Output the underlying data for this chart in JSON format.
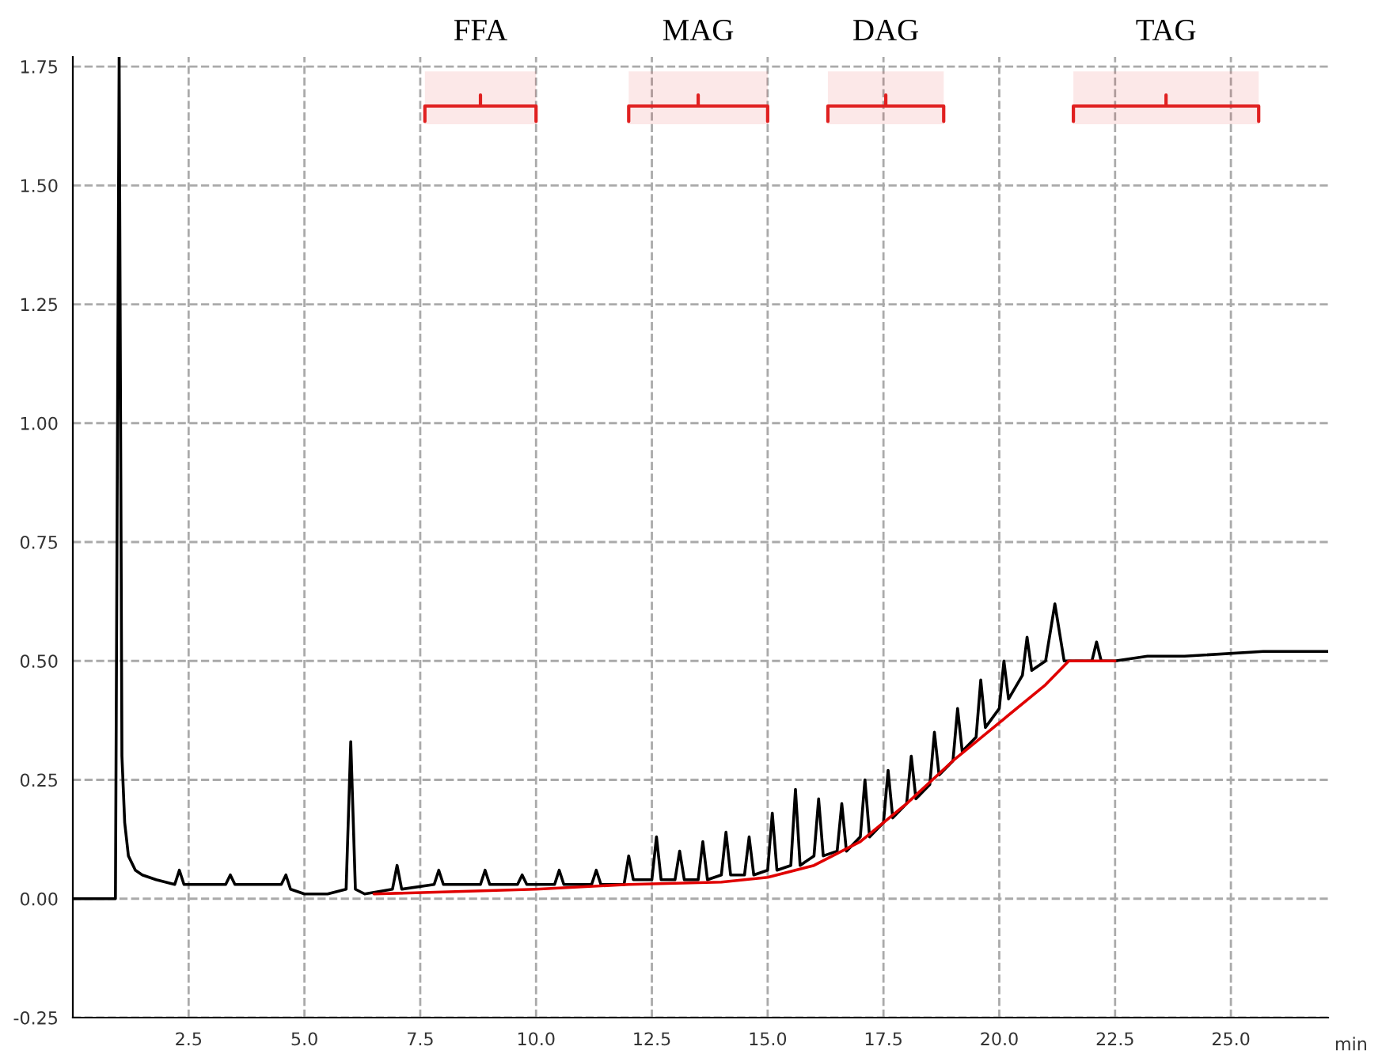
{
  "chart_data": {
    "type": "line",
    "xlabel": "min",
    "xlim": [
      0,
      27.1
    ],
    "ylim": [
      -0.25,
      1.77
    ],
    "xticks": [
      {
        "value": 2.5,
        "label": "2.5"
      },
      {
        "value": 5,
        "label": "5.0"
      },
      {
        "value": 7.5,
        "label": "7.5"
      },
      {
        "value": 10,
        "label": "10.0"
      },
      {
        "value": 12.5,
        "label": "12.5"
      },
      {
        "value": 15,
        "label": "15.0"
      },
      {
        "value": 17.5,
        "label": "17.5"
      },
      {
        "value": 20,
        "label": "20.0"
      },
      {
        "value": 22.5,
        "label": "22.5"
      },
      {
        "value": 25,
        "label": "25.0"
      }
    ],
    "yticks": [
      {
        "value": -0.25,
        "label": "-0.25"
      },
      {
        "value": 0,
        "label": "0.00"
      },
      {
        "value": 0.25,
        "label": "0.25"
      },
      {
        "value": 0.5,
        "label": "0.50"
      },
      {
        "value": 0.75,
        "label": "0.75"
      },
      {
        "value": 1,
        "label": "1.00"
      },
      {
        "value": 1.25,
        "label": "1.25"
      },
      {
        "value": 1.5,
        "label": "1.50"
      },
      {
        "value": 1.75,
        "label": "1.75"
      }
    ],
    "grid": true,
    "legend": false,
    "bands": [
      {
        "axis": "x",
        "from": 7.6,
        "to": 10.0,
        "label": "FFA",
        "color": "#e02020"
      },
      {
        "axis": "x",
        "from": 12.0,
        "to": 15.0,
        "label": "MAG",
        "color": "#e02020"
      },
      {
        "axis": "x",
        "from": 16.3,
        "to": 18.8,
        "label": "DAG",
        "color": "#e02020"
      },
      {
        "axis": "x",
        "from": 21.6,
        "to": 25.6,
        "label": "TAG",
        "color": "#e02020"
      }
    ],
    "series": [
      {
        "color": "#000000",
        "x": [
          0,
          0.85,
          0.92,
          1.0,
          1.06,
          1.12,
          1.2,
          1.35,
          1.5,
          1.8,
          2.2,
          2.3,
          2.4,
          2.7,
          3.3,
          3.4,
          3.5,
          4.0,
          4.5,
          4.6,
          4.7,
          5.0,
          5.5,
          5.9,
          6.0,
          6.1,
          6.3,
          6.9,
          7.0,
          7.1,
          7.8,
          7.9,
          8.0,
          8.8,
          8.9,
          9.0,
          9.6,
          9.7,
          9.8,
          10.4,
          10.5,
          10.6,
          11.2,
          11.3,
          11.4,
          11.9,
          12.0,
          12.1,
          12.5,
          12.6,
          12.7,
          13.0,
          13.1,
          13.2,
          13.5,
          13.6,
          13.7,
          14.0,
          14.1,
          14.2,
          14.5,
          14.6,
          14.7,
          15.0,
          15.1,
          15.2,
          15.5,
          15.6,
          15.7,
          16.0,
          16.1,
          16.2,
          16.5,
          16.6,
          16.7,
          17.0,
          17.1,
          17.2,
          17.5,
          17.6,
          17.7,
          18.0,
          18.1,
          18.2,
          18.5,
          18.6,
          18.7,
          19.0,
          19.1,
          19.2,
          19.5,
          19.6,
          19.7,
          20.0,
          20.1,
          20.2,
          20.5,
          20.6,
          20.7,
          21.0,
          21.2,
          21.4,
          21.6,
          22.0,
          22.1,
          22.2,
          22.5,
          23.2,
          24.0,
          25.7,
          27.1
        ],
        "values": [
          0,
          0,
          0,
          1.77,
          0.3,
          0.16,
          0.09,
          0.06,
          0.05,
          0.04,
          0.03,
          0.06,
          0.03,
          0.03,
          0.03,
          0.05,
          0.03,
          0.03,
          0.03,
          0.05,
          0.02,
          0.01,
          0.01,
          0.02,
          0.33,
          0.02,
          0.01,
          0.02,
          0.07,
          0.02,
          0.03,
          0.06,
          0.03,
          0.03,
          0.06,
          0.03,
          0.03,
          0.05,
          0.03,
          0.03,
          0.06,
          0.03,
          0.03,
          0.06,
          0.03,
          0.03,
          0.09,
          0.04,
          0.04,
          0.13,
          0.04,
          0.04,
          0.1,
          0.04,
          0.04,
          0.12,
          0.04,
          0.05,
          0.14,
          0.05,
          0.05,
          0.13,
          0.05,
          0.06,
          0.18,
          0.06,
          0.07,
          0.23,
          0.07,
          0.09,
          0.21,
          0.09,
          0.1,
          0.2,
          0.1,
          0.13,
          0.25,
          0.13,
          0.16,
          0.27,
          0.17,
          0.2,
          0.3,
          0.21,
          0.24,
          0.35,
          0.26,
          0.29,
          0.4,
          0.31,
          0.34,
          0.46,
          0.36,
          0.4,
          0.5,
          0.42,
          0.47,
          0.55,
          0.48,
          0.5,
          0.62,
          0.5,
          0.5,
          0.5,
          0.54,
          0.5,
          0.5,
          0.51,
          0.51,
          0.52,
          0.52
        ]
      },
      {
        "color": "#e00000",
        "x": [
          6.5,
          10,
          12,
          14,
          15,
          16,
          17,
          18,
          19,
          20,
          21,
          21.5,
          22.5
        ],
        "values": [
          0.01,
          0.02,
          0.03,
          0.035,
          0.045,
          0.07,
          0.12,
          0.2,
          0.29,
          0.37,
          0.45,
          0.5,
          0.5
        ]
      }
    ]
  }
}
